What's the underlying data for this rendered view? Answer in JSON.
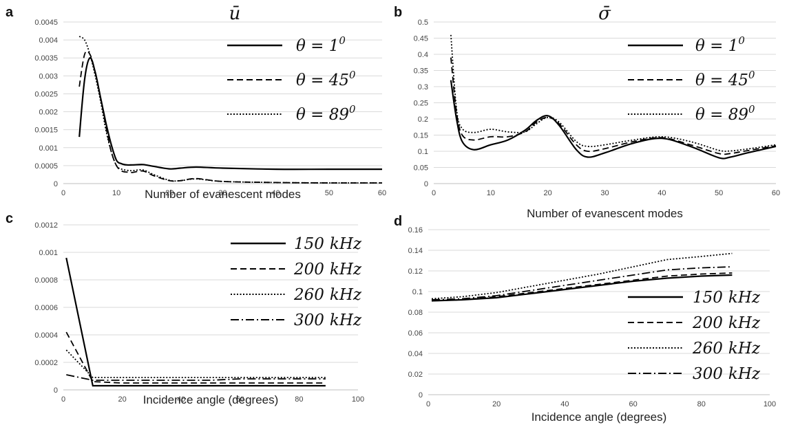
{
  "chart_data": [
    {
      "panel": "a",
      "type": "line",
      "title": "ū",
      "xlabel": "Number of evanescent modes",
      "ylabel": "",
      "xlim": [
        0,
        60
      ],
      "ylim": [
        0,
        0.0045
      ],
      "xticks": [
        0,
        10,
        20,
        30,
        40,
        50,
        60
      ],
      "yticks": [
        0,
        0.0005,
        0.001,
        0.0015,
        0.002,
        0.0025,
        0.003,
        0.0035,
        0.004,
        0.0045
      ],
      "ytick_labels": [
        "0",
        "0.0005",
        "0.001",
        "0.0015",
        "0.002",
        "0.0025",
        "0.003",
        "0.0035",
        "0.004",
        "0.0045"
      ],
      "legend_position": "top-right",
      "grid": true,
      "series": [
        {
          "name": "θ = 1",
          "sup": "0",
          "dash": "solid",
          "x": [
            3,
            4,
            5,
            6,
            7,
            8,
            9,
            10,
            11,
            12,
            13,
            15,
            17,
            20,
            22,
            25,
            30,
            40,
            50,
            60
          ],
          "y": [
            0.0013,
            0.0029,
            0.0035,
            0.0031,
            0.0024,
            0.0017,
            0.0011,
            0.00065,
            0.00055,
            0.00052,
            0.00052,
            0.00053,
            0.00048,
            0.00041,
            0.00043,
            0.00046,
            0.00043,
            0.0004,
            0.0004,
            0.0004
          ]
        },
        {
          "name": "θ = 45",
          "sup": "0",
          "dash": "dashed",
          "x": [
            3,
            4,
            5,
            6,
            7,
            8,
            9,
            10,
            11,
            12,
            13,
            15,
            17,
            20,
            22,
            25,
            30,
            40,
            50,
            60
          ],
          "y": [
            0.0027,
            0.0036,
            0.0036,
            0.0031,
            0.0024,
            0.0016,
            0.0009,
            0.0005,
            0.00035,
            0.00032,
            0.00031,
            0.00035,
            0.00022,
            8e-05,
            8e-05,
            0.00014,
            6e-05,
            3e-05,
            2e-05,
            2e-05
          ]
        },
        {
          "name": "θ = 89",
          "sup": "0",
          "dash": "dotted",
          "x": [
            3,
            4,
            5,
            6,
            7,
            8,
            9,
            10,
            11,
            12,
            13,
            15,
            17,
            20,
            22,
            25,
            30,
            40,
            50,
            60
          ],
          "y": [
            0.0041,
            0.004,
            0.0036,
            0.003,
            0.0023,
            0.0015,
            0.0009,
            0.0005,
            0.0004,
            0.00037,
            0.00036,
            0.00038,
            0.00025,
            9e-05,
            8e-05,
            0.00013,
            6e-05,
            3e-05,
            2e-05,
            2e-05
          ]
        }
      ]
    },
    {
      "panel": "b",
      "type": "line",
      "title": "σ̄",
      "xlabel": "Number of evanescent modes",
      "ylabel": "",
      "xlim": [
        0,
        60
      ],
      "ylim": [
        0,
        0.5
      ],
      "xticks": [
        0,
        10,
        20,
        30,
        40,
        50,
        60
      ],
      "yticks": [
        0,
        0.05,
        0.1,
        0.15,
        0.2,
        0.25,
        0.3,
        0.35,
        0.4,
        0.45,
        0.5
      ],
      "ytick_labels": [
        "0",
        "0.05",
        "0.1",
        "0.15",
        "0.2",
        "0.25",
        "0.3",
        "0.35",
        "0.4",
        "0.45",
        "0.5"
      ],
      "legend_position": "top-right",
      "grid": true,
      "series": [
        {
          "name": "θ = 1",
          "sup": "0",
          "dash": "solid",
          "x": [
            3,
            4,
            5,
            7,
            10,
            13,
            16,
            18,
            20,
            22,
            25,
            27,
            30,
            35,
            40,
            45,
            50,
            52,
            55,
            60
          ],
          "y": [
            0.32,
            0.2,
            0.13,
            0.105,
            0.12,
            0.135,
            0.165,
            0.195,
            0.21,
            0.18,
            0.105,
            0.082,
            0.095,
            0.125,
            0.14,
            0.115,
            0.08,
            0.082,
            0.095,
            0.115
          ]
        },
        {
          "name": "θ = 45",
          "sup": "0",
          "dash": "dashed",
          "x": [
            3,
            4,
            5,
            7,
            10,
            13,
            16,
            18,
            20,
            22,
            25,
            27,
            30,
            35,
            40,
            45,
            50,
            52,
            55,
            60
          ],
          "y": [
            0.39,
            0.22,
            0.15,
            0.135,
            0.145,
            0.145,
            0.16,
            0.19,
            0.205,
            0.185,
            0.12,
            0.1,
            0.108,
            0.13,
            0.142,
            0.12,
            0.093,
            0.093,
            0.102,
            0.117
          ]
        },
        {
          "name": "θ = 89",
          "sup": "0",
          "dash": "dotted",
          "x": [
            3,
            4,
            5,
            7,
            10,
            13,
            16,
            18,
            20,
            22,
            25,
            27,
            30,
            35,
            40,
            45,
            50,
            52,
            55,
            60
          ],
          "y": [
            0.46,
            0.23,
            0.17,
            0.158,
            0.168,
            0.16,
            0.16,
            0.185,
            0.205,
            0.19,
            0.13,
            0.115,
            0.12,
            0.135,
            0.145,
            0.13,
            0.103,
            0.101,
            0.107,
            0.12
          ]
        }
      ]
    },
    {
      "panel": "c",
      "type": "line",
      "title": "",
      "xlabel": "Incidence angle (degrees)",
      "ylabel": "",
      "xlim": [
        0,
        100
      ],
      "ylim": [
        0,
        0.0012
      ],
      "xticks": [
        0,
        20,
        40,
        60,
        80,
        100
      ],
      "yticks": [
        0,
        0.0002,
        0.0004,
        0.0006,
        0.0008,
        0.001,
        0.0012
      ],
      "ytick_labels": [
        "0",
        "0.0002",
        "0.0004",
        "0.0006",
        "0.0008",
        "0.001",
        "0.0012"
      ],
      "legend_position": "top-right",
      "grid": true,
      "series": [
        {
          "name": "150",
          "unit": "kHz",
          "dash": "solid",
          "x": [
            1,
            10,
            20,
            30,
            40,
            50,
            60,
            70,
            80,
            89
          ],
          "y": [
            0.00096,
            3e-05,
            3e-05,
            3e-05,
            3e-05,
            3e-05,
            3e-05,
            3e-05,
            3e-05,
            3e-05
          ]
        },
        {
          "name": "200",
          "unit": "kHz",
          "dash": "dashed",
          "x": [
            1,
            10,
            20,
            30,
            40,
            50,
            60,
            70,
            80,
            89
          ],
          "y": [
            0.00042,
            6e-05,
            5e-05,
            5e-05,
            5e-05,
            5e-05,
            5e-05,
            5e-05,
            5e-05,
            5e-05
          ]
        },
        {
          "name": "260",
          "unit": "kHz",
          "dash": "dotted",
          "x": [
            1,
            10,
            20,
            30,
            40,
            50,
            60,
            70,
            80,
            89
          ],
          "y": [
            0.00029,
            9e-05,
            9e-05,
            9e-05,
            9e-05,
            9e-05,
            9e-05,
            9e-05,
            9e-05,
            9e-05
          ]
        },
        {
          "name": "300",
          "unit": "kHz",
          "dash": "dashdot",
          "x": [
            1,
            10,
            20,
            30,
            40,
            50,
            60,
            70,
            80,
            89
          ],
          "y": [
            0.00011,
            7e-05,
            7e-05,
            7e-05,
            7e-05,
            7e-05,
            8e-05,
            8e-05,
            8e-05,
            8e-05
          ]
        }
      ]
    },
    {
      "panel": "d",
      "type": "line",
      "title": "",
      "xlabel": "Incidence angle (degrees)",
      "ylabel": "",
      "xlim": [
        0,
        100
      ],
      "ylim": [
        0,
        0.16
      ],
      "xticks": [
        0,
        20,
        40,
        60,
        80,
        100
      ],
      "yticks": [
        0,
        0.02,
        0.04,
        0.06,
        0.08,
        0.1,
        0.12,
        0.14,
        0.16
      ],
      "ytick_labels": [
        "0",
        "0.02",
        "0.04",
        "0.06",
        "0.08",
        "0.1",
        "0.12",
        "0.14",
        "0.16"
      ],
      "legend_position": "right",
      "grid": true,
      "series": [
        {
          "name": "150",
          "unit": "kHz",
          "dash": "solid",
          "x": [
            1,
            10,
            20,
            30,
            40,
            50,
            60,
            70,
            80,
            89
          ],
          "y": [
            0.091,
            0.092,
            0.094,
            0.098,
            0.102,
            0.106,
            0.11,
            0.113,
            0.115,
            0.116
          ]
        },
        {
          "name": "200",
          "unit": "kHz",
          "dash": "dashed",
          "x": [
            1,
            10,
            20,
            30,
            40,
            50,
            60,
            70,
            80,
            89
          ],
          "y": [
            0.091,
            0.092,
            0.095,
            0.099,
            0.103,
            0.107,
            0.111,
            0.115,
            0.117,
            0.118
          ]
        },
        {
          "name": "260",
          "unit": "kHz",
          "dash": "dotted",
          "x": [
            1,
            10,
            20,
            30,
            40,
            50,
            60,
            70,
            80,
            89
          ],
          "y": [
            0.093,
            0.095,
            0.099,
            0.105,
            0.111,
            0.117,
            0.124,
            0.131,
            0.134,
            0.137
          ]
        },
        {
          "name": "300",
          "unit": "kHz",
          "dash": "dashdot",
          "x": [
            1,
            10,
            20,
            30,
            40,
            50,
            60,
            70,
            80,
            89
          ],
          "y": [
            0.092,
            0.093,
            0.096,
            0.101,
            0.106,
            0.111,
            0.116,
            0.121,
            0.123,
            0.124
          ]
        }
      ]
    }
  ]
}
